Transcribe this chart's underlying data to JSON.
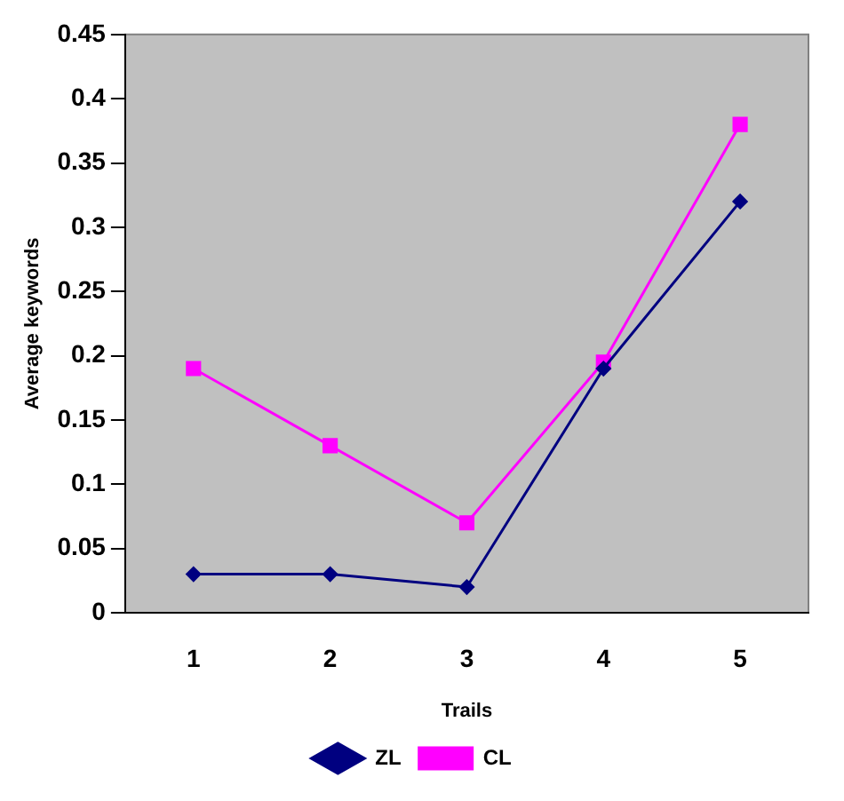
{
  "chart_data": {
    "type": "line",
    "xlabel": "Trails",
    "ylabel": "Average keywords",
    "categories": [
      "1",
      "2",
      "3",
      "4",
      "5"
    ],
    "series": [
      {
        "name": "ZL",
        "color": "#000080",
        "marker": "diamond",
        "values": [
          0.03,
          0.03,
          0.02,
          0.19,
          0.32
        ]
      },
      {
        "name": "CL",
        "color": "#ff00ff",
        "marker": "square",
        "values": [
          0.19,
          0.13,
          0.07,
          0.195,
          0.38
        ]
      }
    ],
    "ylim": [
      0,
      0.45
    ],
    "yticks": [
      0,
      0.05,
      0.1,
      0.15,
      0.2,
      0.25,
      0.3,
      0.35,
      0.4,
      0.45
    ],
    "legend": "bottom"
  }
}
